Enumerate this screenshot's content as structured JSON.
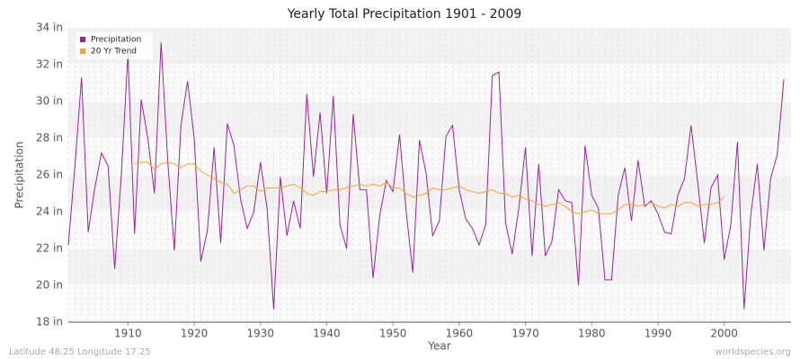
{
  "chart_data": {
    "type": "line",
    "title": "Yearly Total Precipitation 1901 - 2009",
    "x_label": "Year",
    "y_label": "Precipitation",
    "footer_left": "Latitude 48.25 Longitude 17.25",
    "footer_right": "worldspecies.org",
    "legend": "top-left",
    "grid": true,
    "x": [
      1901,
      1902,
      1903,
      1904,
      1905,
      1906,
      1907,
      1908,
      1909,
      1910,
      1911,
      1912,
      1913,
      1914,
      1915,
      1916,
      1917,
      1918,
      1919,
      1920,
      1921,
      1922,
      1923,
      1924,
      1925,
      1926,
      1927,
      1928,
      1929,
      1930,
      1931,
      1932,
      1933,
      1934,
      1935,
      1936,
      1937,
      1938,
      1939,
      1940,
      1941,
      1942,
      1943,
      1944,
      1945,
      1946,
      1947,
      1948,
      1949,
      1950,
      1951,
      1952,
      1953,
      1954,
      1955,
      1956,
      1957,
      1958,
      1959,
      1960,
      1961,
      1962,
      1963,
      1964,
      1965,
      1966,
      1967,
      1968,
      1969,
      1970,
      1971,
      1972,
      1973,
      1974,
      1975,
      1976,
      1977,
      1978,
      1979,
      1980,
      1981,
      1982,
      1983,
      1984,
      1985,
      1986,
      1987,
      1988,
      1989,
      1990,
      1991,
      1992,
      1993,
      1994,
      1995,
      1996,
      1997,
      1998,
      1999,
      2000,
      2001,
      2002,
      2003,
      2004,
      2005,
      2006,
      2007,
      2008,
      2009
    ],
    "series": [
      {
        "name": "Precipitation",
        "color": "#a020a0",
        "values": [
          22.2,
          26.5,
          31.3,
          22.9,
          25.3,
          27.2,
          26.5,
          20.9,
          26.0,
          32.6,
          22.8,
          30.1,
          28.0,
          25.0,
          33.2,
          26.8,
          21.9,
          28.7,
          31.1,
          28.0,
          21.3,
          23.0,
          27.5,
          22.3,
          28.8,
          27.6,
          24.7,
          23.1,
          24.0,
          26.7,
          24.2,
          18.7,
          25.9,
          22.7,
          24.6,
          23.1,
          30.4,
          25.9,
          29.4,
          25.0,
          30.3,
          23.3,
          22.0,
          29.3,
          25.2,
          25.2,
          20.4,
          23.8,
          25.7,
          25.1,
          28.2,
          24.0,
          20.7,
          27.9,
          26.1,
          22.7,
          23.5,
          28.1,
          28.7,
          25.2,
          23.6,
          23.1,
          22.2,
          23.3,
          31.4,
          31.6,
          23.4,
          21.7,
          24.2,
          27.5,
          21.6,
          26.6,
          21.6,
          22.4,
          25.2,
          24.6,
          24.5,
          20.0,
          27.6,
          24.9,
          24.2,
          20.3,
          20.3,
          24.9,
          26.4,
          23.5,
          26.8,
          24.3,
          24.6,
          23.9,
          22.9,
          22.8,
          24.9,
          25.8,
          28.7,
          25.6,
          22.3,
          25.3,
          26.0,
          21.4,
          23.3,
          27.8,
          18.7,
          23.8,
          26.6,
          21.9,
          25.8,
          27.1,
          31.2
        ]
      },
      {
        "name": "20 Yr Trend",
        "color": "#f5a623",
        "values": [
          null,
          null,
          null,
          null,
          null,
          null,
          null,
          null,
          null,
          null,
          26.6,
          26.7,
          26.7,
          26.3,
          26.6,
          26.7,
          26.6,
          26.4,
          26.6,
          26.6,
          26.2,
          26.0,
          25.8,
          25.6,
          25.5,
          25.0,
          25.2,
          25.4,
          25.4,
          25.1,
          25.3,
          25.3,
          25.3,
          25.4,
          25.5,
          25.3,
          25.0,
          24.9,
          25.1,
          25.1,
          25.2,
          25.2,
          25.3,
          25.4,
          25.5,
          25.4,
          25.5,
          25.4,
          25.6,
          25.3,
          25.3,
          25.0,
          24.8,
          24.9,
          25.0,
          25.3,
          25.2,
          25.2,
          25.3,
          25.4,
          25.2,
          25.1,
          25.0,
          25.1,
          25.2,
          25.0,
          25.0,
          24.8,
          24.9,
          24.7,
          24.6,
          24.4,
          24.3,
          24.4,
          24.5,
          24.3,
          24.0,
          23.9,
          24.0,
          24.1,
          23.9,
          23.9,
          23.9,
          24.1,
          24.4,
          24.4,
          24.3,
          24.4,
          24.5,
          24.3,
          24.2,
          24.4,
          24.3,
          24.5,
          24.5,
          24.3,
          24.4,
          24.4,
          24.5,
          24.8,
          null,
          null,
          null,
          null,
          null,
          null,
          null,
          null,
          null
        ]
      }
    ],
    "xlim": [
      1901,
      2009
    ],
    "xticks": [
      1910,
      1920,
      1930,
      1940,
      1950,
      1960,
      1970,
      1980,
      1990,
      2000
    ],
    "ylim": [
      18,
      34
    ],
    "yticks": [
      {
        "value": 18,
        "label": "18 in"
      },
      {
        "value": 20,
        "label": "20 in"
      },
      {
        "value": 22,
        "label": "22 in"
      },
      {
        "value": 24,
        "label": "24 in"
      },
      {
        "value": 26,
        "label": "26 in"
      },
      {
        "value": 28,
        "label": "28 in"
      },
      {
        "value": 30,
        "label": "30 in"
      },
      {
        "value": 32,
        "label": "32 in"
      },
      {
        "value": 34,
        "label": "34 in"
      }
    ]
  }
}
